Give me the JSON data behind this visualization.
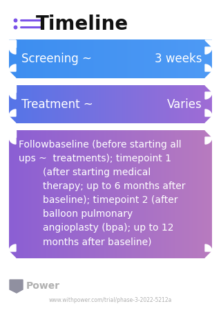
{
  "title": "Timeline",
  "bg_color": "#ffffff",
  "title_color": "#111111",
  "title_fontsize": 20,
  "title_icon_color": "#7b52e8",
  "boxes": [
    {
      "label_left": "Screening ~",
      "label_right": "3 weeks",
      "color_left": "#3d8ef0",
      "color_right": "#4e9af5",
      "text_color": "#ffffff",
      "fontsize": 12,
      "type": "single"
    },
    {
      "label_left": "Treatment ~",
      "label_right": "Varies",
      "color_left": "#5575e8",
      "color_right": "#a06cd5",
      "text_color": "#ffffff",
      "fontsize": 12,
      "type": "single"
    },
    {
      "label_left": "Followbaseline (before starting all\nups ~  treatments); timepoint 1\n        (after starting medical\n        therapy; up to 6 months after\n        baseline); timepoint 2 (after\n        balloon pulmonary\n        angioplasty (bpa); up to 12\n        months after baseline)",
      "label_right": "",
      "color_left": "#8b5fd4",
      "color_right": "#b87bbf",
      "text_color": "#ffffff",
      "fontsize": 10,
      "type": "multi"
    }
  ],
  "footer_text": "Power",
  "footer_url": "www.withpower.com/trial/phase-3-2022-5212a",
  "footer_color": "#b0b0b0",
  "footer_logo_color": "#9090a0"
}
